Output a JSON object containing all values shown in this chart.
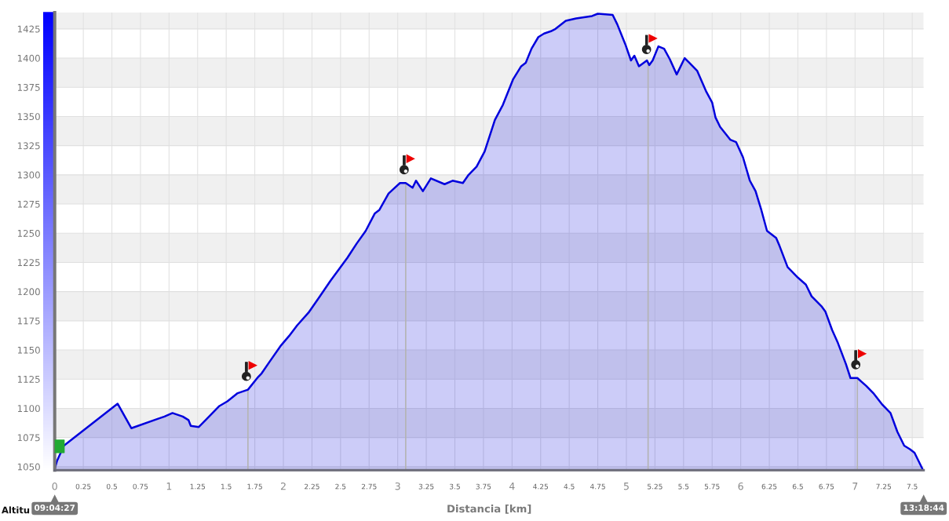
{
  "chart_data": {
    "type": "area",
    "xlabel": "Distancia [km]",
    "annotations": [
      "Altitu",
      "09:04:27",
      "13:18:44"
    ],
    "x": [
      0,
      0.02,
      0.08,
      0.55,
      0.67,
      0.9,
      0.96,
      1.03,
      1.12,
      1.17,
      1.19,
      1.26,
      1.35,
      1.44,
      1.51,
      1.6,
      1.69,
      1.78,
      1.81,
      1.88,
      1.98,
      2.05,
      2.12,
      2.22,
      2.32,
      2.41,
      2.56,
      2.64,
      2.72,
      2.8,
      2.84,
      2.92,
      3.02,
      3.07,
      3.13,
      3.16,
      3.22,
      3.29,
      3.41,
      3.48,
      3.57,
      3.62,
      3.69,
      3.76,
      3.85,
      3.92,
      4.01,
      4.08,
      4.12,
      4.17,
      4.23,
      4.28,
      4.34,
      4.38,
      4.47,
      4.56,
      4.7,
      4.75,
      4.88,
      4.92,
      4.99,
      5.04,
      5.07,
      5.11,
      5.18,
      5.2,
      5.23,
      5.28,
      5.33,
      5.38,
      5.44,
      5.51,
      5.55,
      5.62,
      5.7,
      5.75,
      5.78,
      5.82,
      5.91,
      5.96,
      6.02,
      6.08,
      6.13,
      6.18,
      6.23,
      6.31,
      6.34,
      6.41,
      6.5,
      6.57,
      6.62,
      6.71,
      6.74,
      6.8,
      6.85,
      6.92,
      6.96,
      7.02,
      7.1,
      7.16,
      7.24,
      7.31,
      7.37,
      7.43,
      7.48,
      7.52,
      7.59
    ],
    "series": [
      {
        "color": "#0000dd",
        "values": [
          1048,
          1055,
          1068,
          1104,
          1083,
          1091,
          1093,
          1096,
          1093,
          1090,
          1085,
          1084,
          1093,
          1102,
          1106,
          1113,
          1116,
          1127,
          1130,
          1140,
          1154,
          1162,
          1171,
          1182,
          1196,
          1209,
          1229,
          1241,
          1252,
          1267,
          1270,
          1284,
          1293,
          1293,
          1289,
          1295,
          1286,
          1297,
          1292,
          1295,
          1293,
          1300,
          1307,
          1320,
          1347,
          1360,
          1382,
          1393,
          1396,
          1408,
          1418,
          1421,
          1423,
          1425,
          1432,
          1434,
          1436,
          1438,
          1437,
          1429,
          1412,
          1398,
          1402,
          1393,
          1398,
          1394,
          1398,
          1410,
          1408,
          1399,
          1386,
          1400,
          1396,
          1389,
          1371,
          1362,
          1349,
          1341,
          1330,
          1328,
          1315,
          1295,
          1286,
          1270,
          1252,
          1246,
          1239,
          1221,
          1212,
          1206,
          1196,
          1187,
          1183,
          1167,
          1156,
          1138,
          1126,
          1126,
          1119,
          1113,
          1103,
          1096,
          1080,
          1068,
          1065,
          1062,
          1048
        ]
      }
    ],
    "xlim": [
      0,
      7.6
    ],
    "ylim": [
      1047,
      1439
    ],
    "xticks": [
      0,
      0.25,
      0.5,
      0.75,
      1,
      1.25,
      1.5,
      1.75,
      2,
      2.25,
      2.5,
      2.75,
      3,
      3.25,
      3.5,
      3.75,
      4,
      4.25,
      4.5,
      4.75,
      5,
      5.25,
      5.5,
      5.75,
      6,
      6.25,
      6.5,
      6.75,
      7,
      7.25,
      7.5
    ],
    "yticks": [
      1050,
      1075,
      1100,
      1125,
      1150,
      1175,
      1200,
      1225,
      1250,
      1275,
      1300,
      1325,
      1350,
      1375,
      1400,
      1425
    ],
    "grid": true,
    "ref_lines": [
      {
        "axis": "x",
        "value": 1.69,
        "color": "#b4b4b4"
      },
      {
        "axis": "x",
        "value": 3.07,
        "color": "#b4b4b4"
      },
      {
        "axis": "x",
        "value": 5.19,
        "color": "#b4b4b4"
      },
      {
        "axis": "x",
        "value": 7.02,
        "color": "#b4b4b4"
      }
    ]
  }
}
